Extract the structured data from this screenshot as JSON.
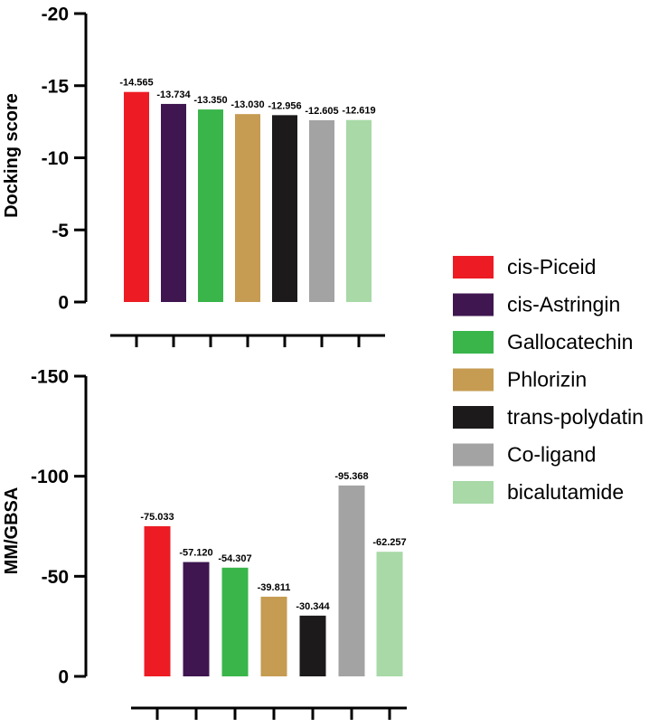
{
  "legend": {
    "placement": "right",
    "items": [
      {
        "label": "cis-Piceid",
        "color": "#ED1C24"
      },
      {
        "label": "cis-Astringin",
        "color": "#3F1650"
      },
      {
        "label": "Gallocatechin",
        "color": "#39B54A"
      },
      {
        "label": "Phlorizin",
        "color": "#C69B52"
      },
      {
        "label": "trans-polydatin",
        "color": "#1C1A1B"
      },
      {
        "label": "Co-ligand",
        "color": "#A3A3A3"
      },
      {
        "label": "bicalutamide",
        "color": "#A8D9A7"
      }
    ]
  },
  "chart_data": [
    {
      "type": "bar",
      "categories": [
        "cis-Piceid",
        "cis-Astringin",
        "Gallocatechin",
        "Phlorizin",
        "trans-polydatin",
        "Co-ligand",
        "bicalutamide"
      ],
      "values": [
        -14.565,
        -13.734,
        -13.35,
        -13.03,
        -12.956,
        -12.605,
        -12.619
      ],
      "value_labels": [
        "-14.565",
        "-13.734",
        "-13.350",
        "-13.030",
        "-12.956",
        "-12.605",
        "-12.619"
      ],
      "colors": [
        "#ED1C24",
        "#3F1650",
        "#39B54A",
        "#C69B52",
        "#1C1A1B",
        "#A3A3A3",
        "#A8D9A7"
      ],
      "ylabel": "Docking score",
      "ylim": [
        0,
        -20
      ],
      "yticks": [
        0,
        -5,
        -10,
        -15,
        -20
      ],
      "ytick_labels": [
        "0",
        "-5",
        "-10",
        "-15",
        "-20"
      ],
      "grid": false
    },
    {
      "type": "bar",
      "categories": [
        "cis-Piceid",
        "cis-Astringin",
        "Gallocatechin",
        "Phlorizin",
        "trans-polydatin",
        "Co-ligand",
        "bicalutamide"
      ],
      "values": [
        -75.033,
        -57.12,
        -54.307,
        -39.811,
        -30.344,
        -95.368,
        -62.257
      ],
      "value_labels": [
        "-75.033",
        "-57.120",
        "-54.307",
        "-39.811",
        "-30.344",
        "-95.368",
        "-62.257"
      ],
      "colors": [
        "#ED1C24",
        "#3F1650",
        "#39B54A",
        "#C69B52",
        "#1C1A1B",
        "#A3A3A3",
        "#A8D9A7"
      ],
      "ylabel": "MM/GBSA",
      "ylim": [
        0,
        -150
      ],
      "yticks": [
        0,
        -50,
        -100,
        -150
      ],
      "ytick_labels": [
        "0",
        "-50",
        "-100",
        "-150"
      ],
      "grid": false
    }
  ]
}
